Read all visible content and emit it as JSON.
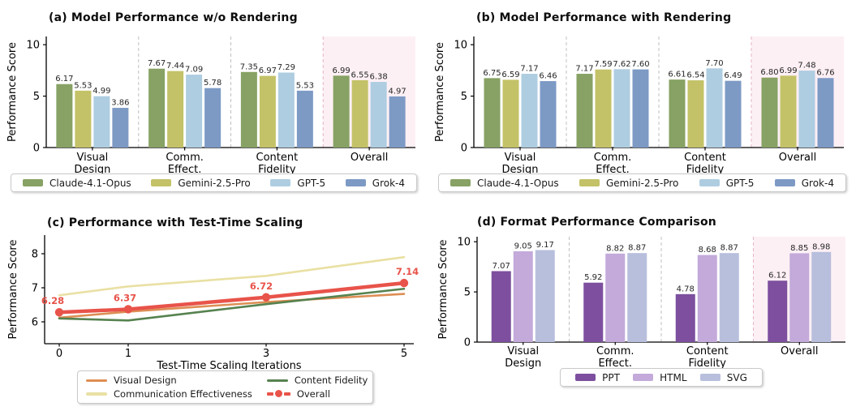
{
  "colors": {
    "background": "#ffffff",
    "highlight_bg": "#fdf0f5",
    "separator_gray": "#c0c0c0",
    "separator_pink": "#e5b3c8",
    "axis": "#000000",
    "value_label": "#262626"
  },
  "chart_data": [
    {
      "type": "bar",
      "title": "(a) Model Performance w/o Rendering",
      "ylabel": "Performance Score",
      "ylim": [
        0,
        10.8
      ],
      "yticks": [
        0,
        5,
        10
      ],
      "categories": [
        "Visual Design",
        "Comm. Effect.",
        "Content Fidelity",
        "Overall"
      ],
      "category_lines": [
        [
          "Visual",
          "Design"
        ],
        [
          "Comm.",
          "Effect."
        ],
        [
          "Content",
          "Fidelity"
        ],
        [
          "Overall"
        ]
      ],
      "highlight_last_category": true,
      "legend_position": "bottom",
      "series": [
        {
          "name": "Claude-4.1-Opus",
          "color": "#87a264",
          "values": [
            6.17,
            7.67,
            7.35,
            6.99
          ]
        },
        {
          "name": "Gemini-2.5-Pro",
          "color": "#c3c268",
          "values": [
            5.53,
            7.44,
            6.97,
            6.55
          ]
        },
        {
          "name": "GPT-5",
          "color": "#aecde1",
          "values": [
            4.99,
            7.09,
            7.29,
            6.38
          ]
        },
        {
          "name": "Grok-4",
          "color": "#7d9ac5",
          "values": [
            3.86,
            5.78,
            5.53,
            4.97
          ]
        }
      ]
    },
    {
      "type": "bar",
      "title": "(b) Model Performance with Rendering",
      "ylabel": "Performance Score",
      "ylim": [
        0,
        10.8
      ],
      "yticks": [
        0,
        5,
        10
      ],
      "categories": [
        "Visual Design",
        "Comm. Effect.",
        "Content Fidelity",
        "Overall"
      ],
      "category_lines": [
        [
          "Visual",
          "Design"
        ],
        [
          "Comm.",
          "Effect."
        ],
        [
          "Content",
          "Fidelity"
        ],
        [
          "Overall"
        ]
      ],
      "highlight_last_category": true,
      "legend_position": "bottom",
      "series": [
        {
          "name": "Claude-4.1-Opus",
          "color": "#87a264",
          "values": [
            6.75,
            7.17,
            6.61,
            6.8
          ]
        },
        {
          "name": "Gemini-2.5-Pro",
          "color": "#c3c268",
          "values": [
            6.59,
            7.59,
            6.54,
            6.99
          ]
        },
        {
          "name": "GPT-5",
          "color": "#aecde1",
          "values": [
            7.17,
            7.62,
            7.7,
            7.48
          ]
        },
        {
          "name": "Grok-4",
          "color": "#7d9ac5",
          "values": [
            6.46,
            7.6,
            6.49,
            6.76
          ]
        }
      ]
    },
    {
      "type": "line",
      "title": "(c) Performance with Test-Time Scaling",
      "xlabel": "Test-Time Scaling Iterations",
      "ylabel": "Performance Score",
      "x": [
        0,
        1,
        3,
        5
      ],
      "xticks": [
        0,
        1,
        3,
        5
      ],
      "yticks": [
        6,
        7,
        8
      ],
      "ylim": [
        5.4,
        8.55
      ],
      "legend_position": "bottom",
      "series": [
        {
          "name": "Visual Design",
          "color": "#dd8e54",
          "values": [
            6.12,
            6.3,
            6.58,
            6.82
          ]
        },
        {
          "name": "Communication Effectiveness",
          "color": "#e9e0a3",
          "values": [
            6.78,
            7.04,
            7.35,
            7.9
          ]
        },
        {
          "name": "Content Fidelity",
          "color": "#56824f",
          "values": [
            6.1,
            6.04,
            6.52,
            6.97
          ]
        },
        {
          "name": "Overall",
          "color": "#e8534a",
          "emphasis": true,
          "show_labels": true,
          "values": [
            6.28,
            6.37,
            6.72,
            7.14
          ],
          "point_labels": [
            "6.28",
            "6.37",
            "6.72",
            "7.14"
          ]
        }
      ]
    },
    {
      "type": "bar",
      "title": "(d) Format Performance Comparison",
      "ylabel": "Performance Score",
      "ylim": [
        0,
        10.5
      ],
      "yticks": [
        0,
        5,
        10
      ],
      "categories": [
        "Visual Design",
        "Comm. Effect.",
        "Content Fidelity",
        "Overall"
      ],
      "category_lines": [
        [
          "Visual",
          "Design"
        ],
        [
          "Comm.",
          "Effect."
        ],
        [
          "Content",
          "Fidelity"
        ],
        [
          "Overall"
        ]
      ],
      "highlight_last_category": true,
      "legend_position": "bottom",
      "series": [
        {
          "name": "PPT",
          "color": "#7d4f9e",
          "values": [
            7.07,
            5.92,
            4.78,
            6.12
          ]
        },
        {
          "name": "HTML",
          "color": "#c3aada",
          "values": [
            9.05,
            8.82,
            8.68,
            8.85
          ]
        },
        {
          "name": "SVG",
          "color": "#b8bfdd",
          "values": [
            9.17,
            8.87,
            8.87,
            8.98
          ]
        }
      ]
    }
  ]
}
